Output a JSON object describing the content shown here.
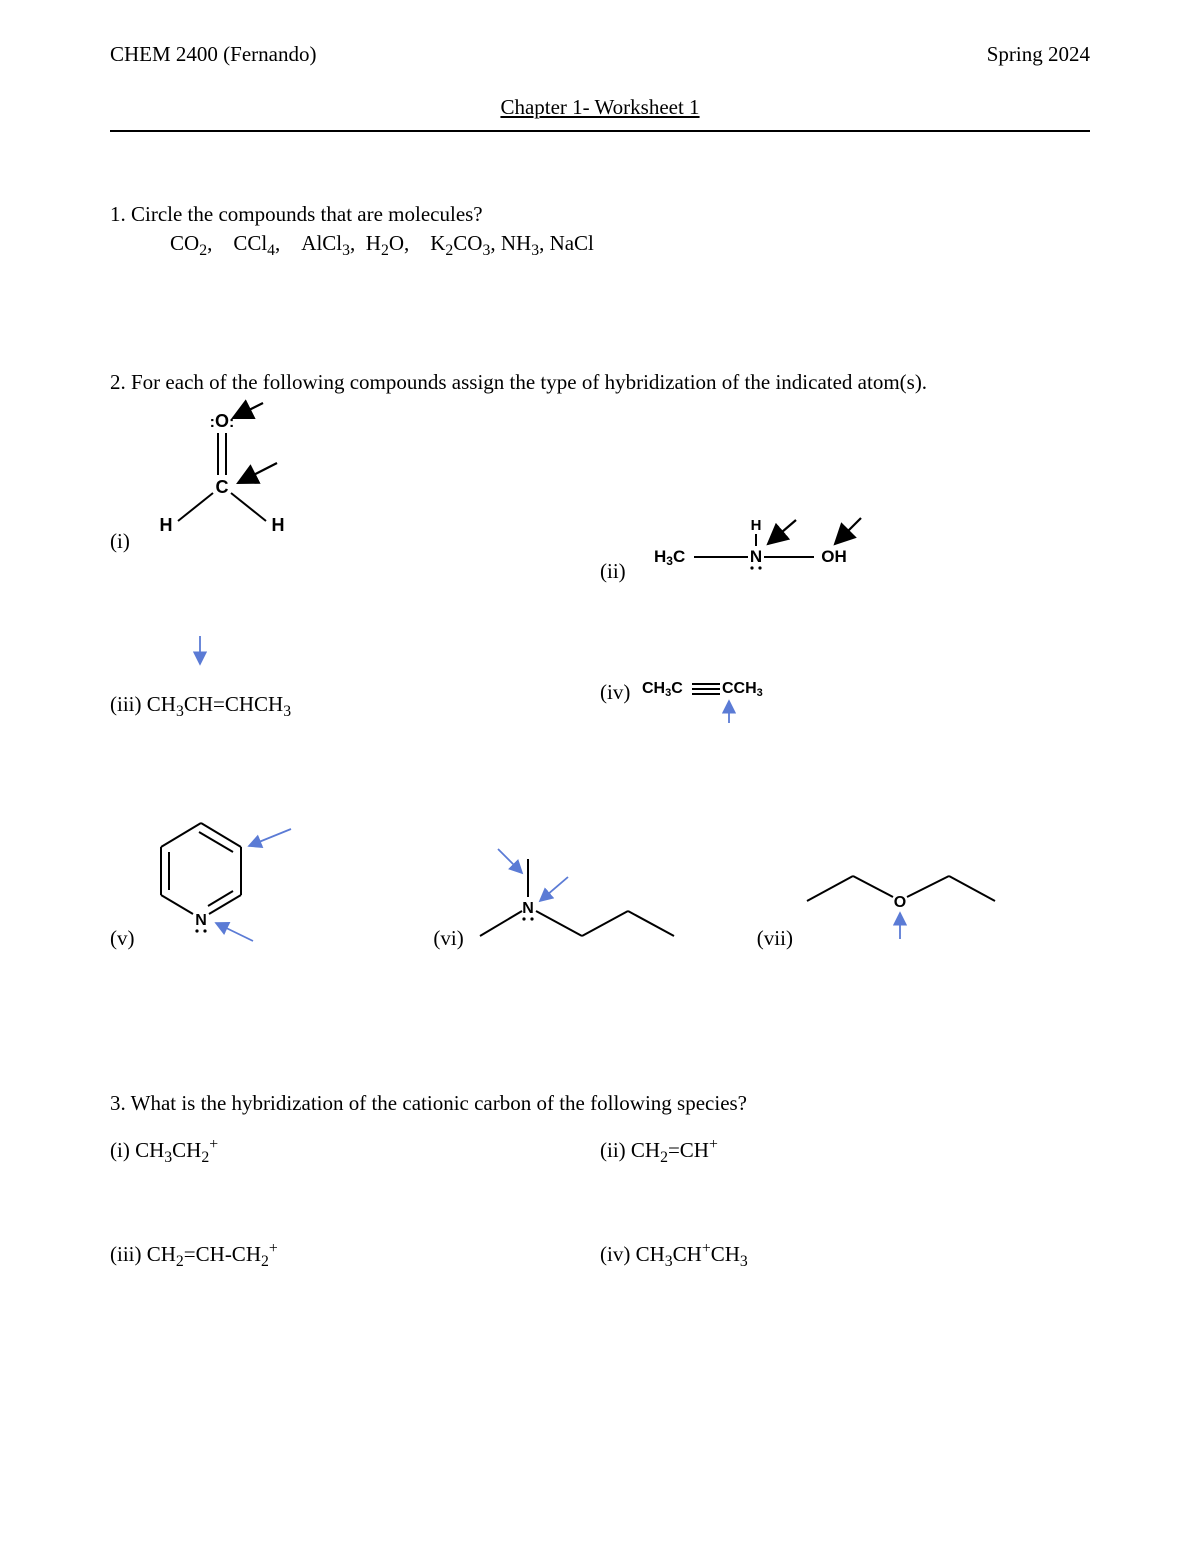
{
  "header": {
    "left": "CHEM 2400 (Fernando)",
    "right": "Spring 2024",
    "title": "Chapter 1- Worksheet 1"
  },
  "q1": {
    "prompt": "1. Circle the compounds that are molecules?",
    "compounds_html": "CO<sub>2</sub>, CCl<sub>4</sub>, AlCl<sub>3</sub>,  H<sub>2</sub>O, K<sub>2</sub>CO<sub>3</sub>, NH<sub>3</sub>, NaCl"
  },
  "q2": {
    "prompt": "2. For each of the following compounds assign the type of hybridization of the indicated atom(s).",
    "labels": {
      "i": "(i)",
      "ii": "(ii)",
      "iii": "(iii)",
      "iv": "(iv)",
      "v": "(v)",
      "vi": "(vi)",
      "vii": "(vii)"
    },
    "iii_html": "CH<sub>3</sub>CH=CHCH<sub>3</sub>",
    "iv_html": "CH<sub>3</sub>C≡CCH<sub>3</sub>",
    "diagram_text": {
      "H3C": "H3C",
      "N": "N",
      "H": "H",
      "OH": "OH",
      "O": "O",
      "C": "C"
    },
    "colors": {
      "black": "#000000",
      "blue": "#5b7bd5"
    },
    "arrow_style": {
      "black_head_len": 10,
      "black_head_w": 10,
      "blue_head_len": 8,
      "blue_head_w": 7,
      "stroke_w_black": 2.2,
      "stroke_w_blue": 1.8
    }
  },
  "q3": {
    "prompt": "3. What is the hybridization of the cationic carbon of the following species?",
    "i": "(i) CH<sub>3</sub>CH<sub>2</sub><sup>+</sup>",
    "ii": "(ii) CH<sub>2</sub>=CH<sup>+</sup>",
    "iii": "(iii) CH<sub>2</sub>=CH-CH<sub>2</sub><sup>+</sup>",
    "iv": "(iv) CH<sub>3</sub>CH<sup>+</sup>CH<sub>3</sub>"
  }
}
